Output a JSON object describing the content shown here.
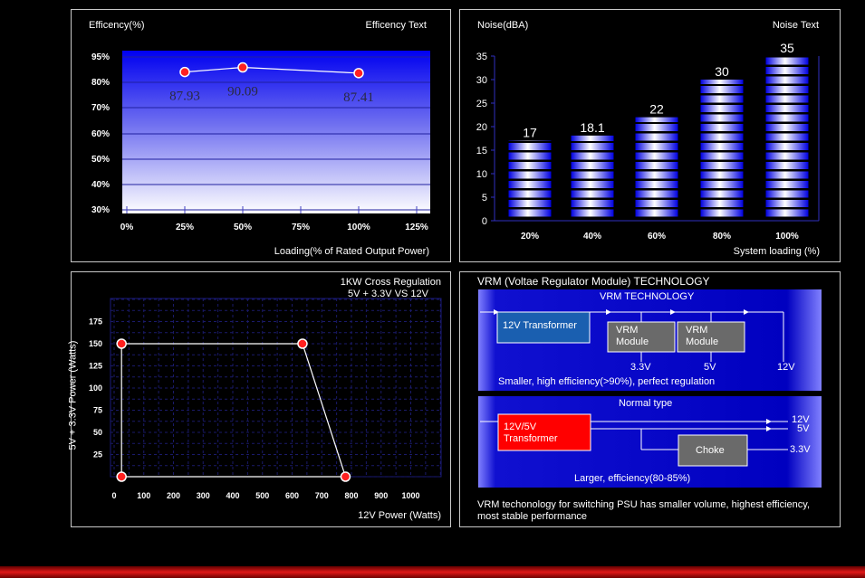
{
  "efficiency": {
    "title": "Efficency(%)",
    "right_title": "Efficency Text",
    "xlabel": "Loading(% of Rated Output Power)",
    "x_ticks": [
      "0%",
      "25%",
      "50%",
      "75%",
      "100%",
      "125%"
    ],
    "y_ticks": [
      "30%",
      "40%",
      "50%",
      "60%",
      "70%",
      "80%",
      "95%"
    ]
  },
  "noise": {
    "title": "Noise(dBA)",
    "right_title": "Noise Text",
    "xlabel": "System loading (%)",
    "y_ticks": [
      "0",
      "5",
      "10",
      "15",
      "20",
      "25",
      "30",
      "35"
    ]
  },
  "regulation": {
    "title_line1": "1KW Cross Regulation",
    "title_line2": "5V + 3.3V VS 12V",
    "xlabel": "12V Power (Watts)",
    "ylabel": "5V + 3.3V Power (Watts)",
    "x_ticks": [
      "0",
      "100",
      "200",
      "300",
      "400",
      "500",
      "600",
      "700",
      "800",
      "900",
      "1000"
    ],
    "y_ticks": [
      "25",
      "50",
      "75",
      "100",
      "125",
      "150",
      "175"
    ]
  },
  "vrm": {
    "title": "VRM (Voltae Regulator Module) TECHNOLOGY",
    "top_banner": "VRM TECHNOLOGY",
    "transformer_label": "12V Transformer",
    "module1_label": "VRM Module",
    "module2_label": "VRM Module",
    "v33_label": "3.3V",
    "v5_label": "5V",
    "v12_label": "12V",
    "top_caption": "Smaller, high efficiency(>90%), perfect regulation",
    "normal_banner": "Normal type",
    "normal_transformer_label": "12V/5V Transformer",
    "choke_label": "Choke",
    "n12_label": "12V",
    "n5_label": "5V",
    "n33_label": "3.3V",
    "normal_caption": "Larger, efficiency(80-85%)",
    "footer": "VRM techonology for switching PSU has smaller volume, highest efficiency, most stable performance"
  },
  "chart_data": [
    {
      "type": "line",
      "title": "Efficency(%)",
      "xlabel": "Loading(% of Rated Output Power)",
      "ylabel": "",
      "x_ticks": [
        "0%",
        "25%",
        "50%",
        "75%",
        "100%",
        "125%"
      ],
      "xlim": [
        0,
        125
      ],
      "series": [
        {
          "x": [
            25,
            50,
            100
          ],
          "values": [
            87.93,
            90.09,
            87.41
          ],
          "labels": [
            "87.93",
            "90.09",
            "87.41"
          ]
        }
      ]
    },
    {
      "type": "bar",
      "title": "Noise(dBA)",
      "xlabel": "System loading (%)",
      "categories": [
        "20%",
        "40%",
        "60%",
        "80%",
        "100%"
      ],
      "values": [
        17,
        18.1,
        22,
        30,
        35
      ],
      "labels": [
        "17",
        "18.1",
        "22",
        "30",
        "35"
      ],
      "ylim": [
        0,
        35
      ]
    },
    {
      "type": "line",
      "title": "1KW Cross Regulation 5V + 3.3V VS 12V",
      "xlabel": "12V Power (Watts)",
      "ylabel": "5V + 3.3V Power (Watts)",
      "xlim": [
        0,
        1000
      ],
      "ylim": [
        0,
        175
      ],
      "series": [
        {
          "x": [
            25,
            25,
            635,
            780,
            25
          ],
          "values": [
            0,
            150,
            150,
            0,
            0
          ]
        }
      ]
    }
  ]
}
